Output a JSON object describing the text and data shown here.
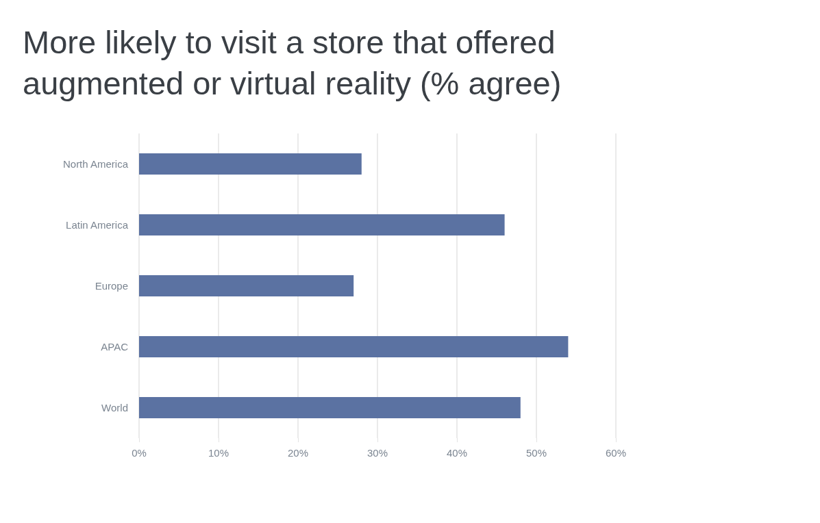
{
  "chart_data": {
    "type": "bar",
    "orientation": "horizontal",
    "title": "More likely to visit a store that offered augmented or virtual reality (% agree)",
    "categories": [
      "North America",
      "Latin America",
      "Europe",
      "APAC",
      "World"
    ],
    "values": [
      28,
      46,
      27,
      54,
      48
    ],
    "color": "#5b72a2",
    "xlim": [
      0,
      60
    ],
    "xticks": [
      {
        "value": 0,
        "label": "0%"
      },
      {
        "value": 10,
        "label": "10%"
      },
      {
        "value": 20,
        "label": "20%"
      },
      {
        "value": 30,
        "label": "30%"
      },
      {
        "value": 40,
        "label": "40%"
      },
      {
        "value": 50,
        "label": "50%"
      },
      {
        "value": 60,
        "label": "60%"
      }
    ],
    "grid": "x"
  }
}
